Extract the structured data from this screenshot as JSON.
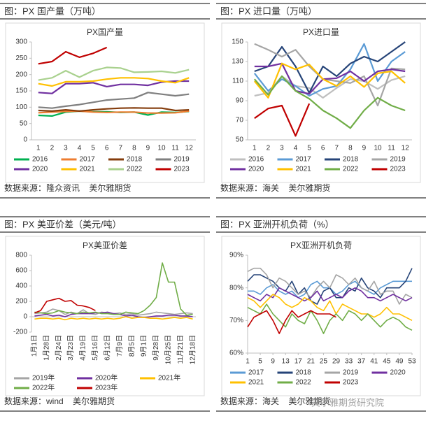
{
  "watermark": "美尔雅期货研究院",
  "chart_data": [
    {
      "type": "line",
      "header": "图：PX 国产量（万吨）",
      "source": "数据来源：隆众资讯    美尔雅期货",
      "title": "PX国产量",
      "categories": [
        "1",
        "2",
        "3",
        "4",
        "5",
        "6",
        "7",
        "8",
        "9",
        "10",
        "11",
        "12"
      ],
      "ylim": [
        0,
        300
      ],
      "yticks": [
        0,
        50,
        100,
        150,
        200,
        250,
        300
      ],
      "series": [
        {
          "name": "2016",
          "color": "#00b050",
          "values": [
            75,
            73,
            85,
            88,
            86,
            86,
            84,
            85,
            76,
            85,
            84,
            87
          ]
        },
        {
          "name": "2017",
          "color": "#ed7d31",
          "values": [
            83,
            85,
            87,
            88,
            85,
            84,
            85,
            85,
            82,
            82,
            83,
            88
          ]
        },
        {
          "name": "2018",
          "color": "#843c0c",
          "values": [
            90,
            88,
            92,
            88,
            92,
            95,
            97,
            98,
            97,
            97,
            90,
            92
          ]
        },
        {
          "name": "2019",
          "color": "#7f7f7f",
          "values": [
            100,
            97,
            103,
            108,
            115,
            122,
            125,
            128,
            145,
            140,
            135,
            140
          ]
        },
        {
          "name": "2020",
          "color": "#7030a0",
          "values": [
            145,
            142,
            172,
            172,
            175,
            163,
            170,
            170,
            167,
            177,
            180,
            180
          ]
        },
        {
          "name": "2021",
          "color": "#ffc000",
          "values": [
            172,
            165,
            178,
            178,
            180,
            186,
            190,
            190,
            188,
            180,
            175,
            190
          ]
        },
        {
          "name": "2022",
          "color": "#a9d18e",
          "values": [
            183,
            190,
            212,
            192,
            212,
            222,
            220,
            207,
            208,
            210,
            205,
            215
          ]
        },
        {
          "name": "2023",
          "color": "#c00000",
          "values": [
            233,
            240,
            270,
            253,
            265,
            283,
            null,
            null,
            null,
            null,
            null,
            null
          ]
        }
      ]
    },
    {
      "type": "line",
      "header": "图：PX 进口量（万吨）",
      "source": "数据来源：海关    美尔雅期货",
      "title": "PX进口量",
      "categories": [
        "1",
        "2",
        "3",
        "4",
        "5",
        "6",
        "7",
        "8",
        "9",
        "10",
        "11",
        "12"
      ],
      "ylim": [
        50,
        150
      ],
      "yticks": [
        50,
        70,
        90,
        110,
        130,
        150
      ],
      "series": [
        {
          "name": "2016",
          "color": "#bfbfbf",
          "values": [
            95,
            98,
            115,
            105,
            103,
            93,
            103,
            112,
            110,
            102,
            111,
            115
          ]
        },
        {
          "name": "2017",
          "color": "#5b9bd5",
          "values": [
            118,
            100,
            112,
            105,
            95,
            102,
            105,
            122,
            148,
            110,
            130,
            140
          ]
        },
        {
          "name": "2018",
          "color": "#264478",
          "values": [
            120,
            125,
            145,
            125,
            98,
            125,
            115,
            128,
            135,
            130,
            140,
            150
          ]
        },
        {
          "name": "2019",
          "color": "#a5a5a5",
          "values": [
            148,
            142,
            135,
            142,
            125,
            112,
            110,
            108,
            115,
            85,
            123,
            122
          ]
        },
        {
          "name": "2020",
          "color": "#7030a0",
          "values": [
            125,
            125,
            128,
            100,
            97,
            112,
            113,
            120,
            110,
            120,
            122,
            120
          ]
        },
        {
          "name": "2021",
          "color": "#ffc000",
          "values": [
            110,
            93,
            128,
            122,
            127,
            112,
            105,
            115,
            104,
            118,
            120,
            108
          ]
        },
        {
          "name": "2022",
          "color": "#70ad47",
          "values": [
            112,
            96,
            115,
            100,
            92,
            80,
            72,
            62,
            80,
            93,
            85,
            80
          ]
        },
        {
          "name": "2023",
          "color": "#c00000",
          "values": [
            72,
            82,
            85,
            54,
            87,
            null,
            null,
            null,
            null,
            null,
            null,
            null
          ]
        }
      ]
    },
    {
      "type": "line",
      "header": "图：PX 美亚价差（美元/吨）",
      "source": "数据来源：wind    美尔雅期货",
      "title": "PX美亚价差",
      "categories": [
        "1月1日",
        null,
        "1月28日",
        null,
        "2月24日",
        null,
        "3月23日",
        null,
        "4月19日",
        null,
        "5月16日",
        null,
        "6月12日",
        null,
        "7月9日",
        null,
        "8月5日",
        null,
        "9月1日",
        null,
        "9月28日",
        null,
        "10月25日",
        null,
        "11月21日",
        null,
        "12月18日"
      ],
      "ylim": [
        -200,
        800
      ],
      "yticks": [
        -200,
        0,
        200,
        400,
        600,
        800
      ],
      "series": [
        {
          "name": "2019年",
          "color": "#a5a5a5",
          "values": [
            40,
            50,
            60,
            100,
            80,
            30,
            60,
            40,
            90,
            40,
            30,
            60,
            50,
            40,
            50,
            30,
            40,
            20,
            30,
            40,
            60,
            50,
            40,
            30,
            40,
            50,
            40
          ]
        },
        {
          "name": "2020年",
          "color": "#7030a0",
          "values": [
            10,
            20,
            30,
            10,
            20,
            0,
            30,
            40,
            40,
            40,
            50,
            50,
            60,
            40,
            30,
            10,
            20,
            0,
            -10,
            0,
            10,
            10,
            20,
            20,
            10,
            10,
            0
          ]
        },
        {
          "name": "2021年",
          "color": "#ffc000",
          "values": [
            -30,
            -20,
            -20,
            -30,
            -20,
            -40,
            -20,
            -30,
            -20,
            -30,
            -20,
            -30,
            -20,
            -30,
            -20,
            0,
            -20,
            -10,
            -10,
            -20,
            -20,
            -30,
            -20,
            -10,
            -20,
            -10,
            -30
          ]
        },
        {
          "name": "2022年",
          "color": "#70ad47",
          "values": [
            60,
            50,
            40,
            50,
            80,
            60,
            50,
            40,
            60,
            50,
            60,
            40,
            40,
            30,
            30,
            60,
            50,
            40,
            80,
            150,
            250,
            700,
            450,
            450,
            100,
            20,
            30
          ]
        },
        {
          "name": "2023年",
          "color": "#c00000",
          "values": [
            50,
            80,
            200,
            220,
            240,
            200,
            210,
            150,
            140,
            120,
            80,
            null,
            null,
            null,
            null,
            null,
            null,
            null,
            null,
            null,
            null,
            null,
            null,
            null,
            null,
            null,
            null
          ]
        }
      ]
    },
    {
      "type": "line",
      "header": "图：PX 亚洲开机负荷（%）",
      "source": "数据来源：海关    美尔雅期货",
      "title": "PX亚洲开机负荷",
      "x": [
        1,
        3,
        5,
        7,
        9,
        11,
        13,
        15,
        17,
        19,
        21,
        23,
        25,
        27,
        29,
        31,
        33,
        35,
        37,
        39,
        41,
        43,
        45,
        47,
        49,
        51,
        53
      ],
      "xlim": [
        1,
        53
      ],
      "xticks": [
        1,
        5,
        9,
        13,
        17,
        21,
        25,
        29,
        33,
        37,
        41,
        45,
        49,
        53
      ],
      "ylim": [
        60,
        90
      ],
      "yticks": [
        {
          "value": 60,
          "label": "60%"
        },
        {
          "value": 70,
          "label": "70%"
        },
        {
          "value": 80,
          "label": "80%"
        },
        {
          "value": 90,
          "label": "90%"
        }
      ],
      "series": [
        {
          "name": "2017",
          "color": "#5b9bd5",
          "values": [
            79,
            79,
            78,
            80,
            81,
            79,
            78,
            79,
            77,
            78,
            81,
            82,
            80,
            80,
            78,
            79,
            81,
            82,
            80,
            79,
            78,
            80,
            81,
            82,
            82,
            82,
            82
          ]
        },
        {
          "name": "2018",
          "color": "#264478",
          "values": [
            82,
            84,
            84,
            83,
            82,
            80,
            79,
            82,
            78,
            80,
            76,
            75,
            79,
            80,
            77,
            77,
            80,
            79,
            83,
            80,
            79,
            77,
            80,
            80,
            80,
            82,
            86
          ]
        },
        {
          "name": "2019",
          "color": "#a5a5a5",
          "values": [
            85,
            86,
            86,
            84,
            80,
            83,
            82,
            80,
            78,
            79,
            77,
            80,
            82,
            80,
            84,
            83,
            81,
            83,
            80,
            79,
            82,
            78,
            79,
            79,
            75,
            78,
            77
          ]
        },
        {
          "name": "2020",
          "color": "#7030a0",
          "values": [
            78,
            77,
            76,
            78,
            77,
            80,
            79,
            78,
            77,
            76,
            77,
            79,
            76,
            77,
            78,
            77,
            79,
            80,
            79,
            77,
            77,
            76,
            77,
            78,
            77,
            76,
            77
          ]
        },
        {
          "name": "2021",
          "color": "#ffc000",
          "values": [
            77,
            76,
            74,
            76,
            78,
            77,
            75,
            74,
            75,
            77,
            76,
            74,
            73,
            76,
            72,
            75,
            74,
            73,
            72,
            72,
            71,
            72,
            74,
            72,
            72,
            71,
            70
          ]
        },
        {
          "name": "2022",
          "color": "#70ad47",
          "values": [
            74,
            73,
            72,
            75,
            72,
            70,
            68,
            72,
            70,
            69,
            73,
            70,
            66,
            70,
            72,
            70,
            73,
            72,
            70,
            72,
            70,
            68,
            70,
            71,
            70,
            68,
            67
          ]
        },
        {
          "name": "2023",
          "color": "#c00000",
          "values": [
            68,
            71,
            72,
            73,
            70,
            66,
            70,
            73,
            71,
            72,
            73,
            72,
            72,
            72,
            71,
            null,
            null,
            null,
            null,
            null,
            null,
            null,
            null,
            null,
            null,
            null,
            null
          ]
        }
      ]
    }
  ]
}
